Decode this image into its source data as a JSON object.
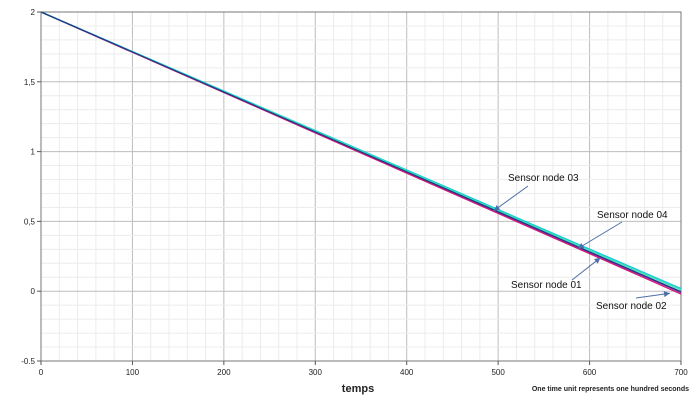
{
  "chart_data": {
    "type": "line",
    "title": "",
    "xlabel": "temps",
    "ylabel": "",
    "note": "One time unit represents one hundred seconds",
    "xlim": [
      0,
      700
    ],
    "ylim": [
      -0.5,
      2
    ],
    "grid": true,
    "x_ticks": [
      "0",
      "100",
      "200",
      "300",
      "400",
      "500",
      "600",
      "700"
    ],
    "y_ticks": [
      "-0.5",
      "0",
      "0,5",
      "1",
      "1,5",
      "2"
    ],
    "series": [
      {
        "name": "Sensor node 01",
        "color": "#7b2a9a",
        "x": [
          0,
          100,
          200,
          300,
          400,
          500,
          600,
          700
        ],
        "values": [
          2.0,
          1.713,
          1.426,
          1.139,
          0.852,
          0.565,
          0.278,
          -0.009
        ]
      },
      {
        "name": "Sensor node 02",
        "color": "#d4147a",
        "x": [
          0,
          100,
          200,
          300,
          400,
          500,
          600,
          700
        ],
        "values": [
          2.0,
          1.711,
          1.423,
          1.134,
          0.846,
          0.557,
          0.269,
          -0.02
        ]
      },
      {
        "name": "Sensor node 03",
        "color": "#19c4d8",
        "x": [
          0,
          100,
          200,
          300,
          400,
          500,
          600,
          700
        ],
        "values": [
          2.0,
          1.717,
          1.434,
          1.151,
          0.868,
          0.585,
          0.302,
          0.019
        ]
      },
      {
        "name": "Sensor node 04",
        "color": "#2ee8b0",
        "x": [
          0,
          100,
          200,
          300,
          400,
          500,
          600,
          700
        ],
        "values": [
          2.0,
          1.716,
          1.431,
          1.147,
          0.862,
          0.578,
          0.293,
          0.009
        ]
      },
      {
        "name": "",
        "color": "#1f3a8a",
        "x": [
          0,
          100,
          200,
          300,
          400,
          500,
          600,
          700
        ],
        "values": [
          2.0,
          1.714,
          1.427,
          1.141,
          0.855,
          0.569,
          0.282,
          -0.004
        ]
      }
    ],
    "annotations": [
      {
        "text": "Sensor node 03",
        "x": 495,
        "y": 0.575
      },
      {
        "text": "Sensor node 04",
        "x": 587,
        "y": 0.305
      },
      {
        "text": "Sensor node 01",
        "x": 612,
        "y": 0.24
      },
      {
        "text": "Sensor node 02",
        "x": 688,
        "y": -0.015
      }
    ]
  }
}
